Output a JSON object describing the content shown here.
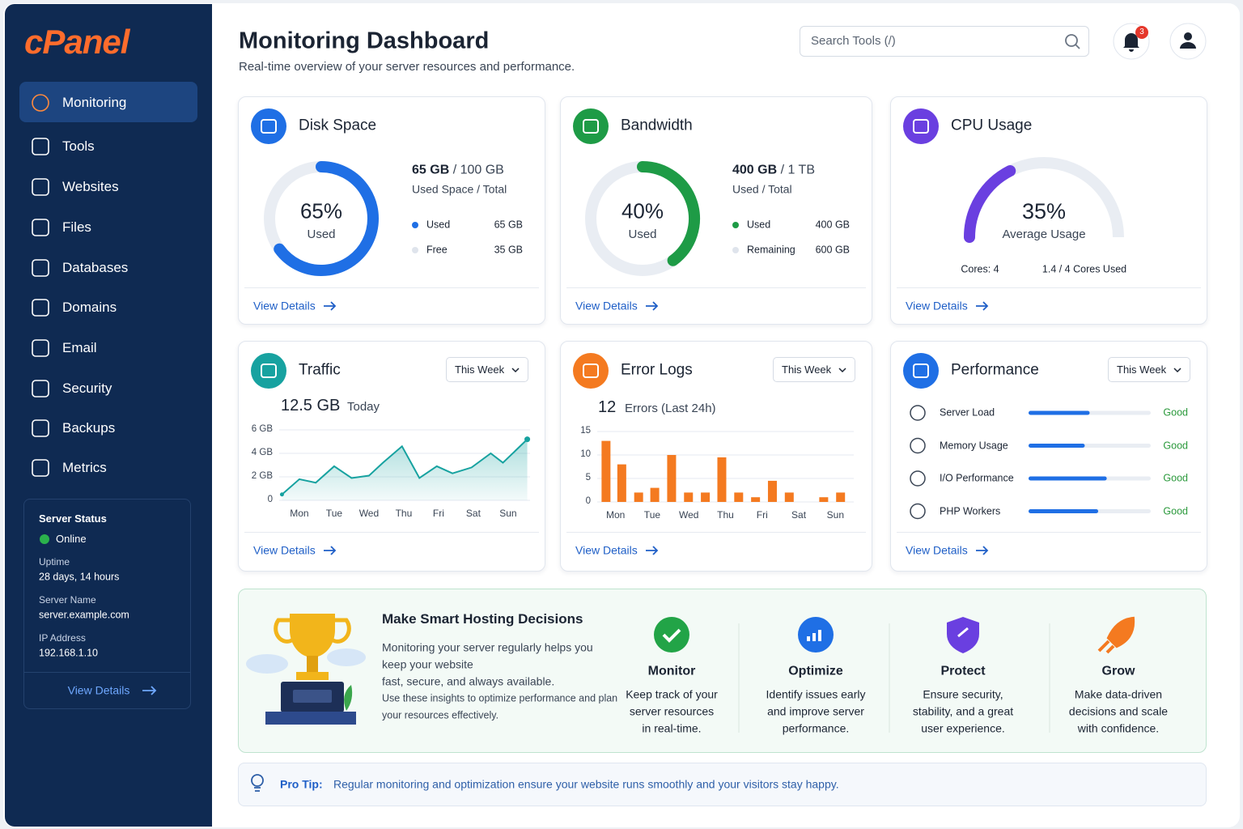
{
  "sidebar": {
    "logo": "cPanel",
    "nav": [
      "Monitoring",
      "Tools",
      "Websites",
      "Files",
      "Databases",
      "Domains",
      "Email",
      "Security",
      "Backups",
      "Metrics"
    ],
    "server_status": {
      "title": "Server Status",
      "status": "Online",
      "fields": [
        {
          "label": "Uptime",
          "value": "28 days, 14 hours"
        },
        {
          "label": "Server Name",
          "value": "server.example.com"
        },
        {
          "label": "IP Address",
          "value": "192.168.1.10"
        }
      ],
      "link": "View Details"
    }
  },
  "header": {
    "title": "Monitoring Dashboard",
    "subtitle": "Real-time overview of your server resources and performance.",
    "search_placeholder": "Search Tools (/)",
    "notifications": 3
  },
  "disk": {
    "title": "Disk Space",
    "percent": {
      "value": 65,
      "label": "65%"
    },
    "percent_caption": "Used",
    "color": "#1f6fe5",
    "used": "65 GB",
    "total": "/ 100 GB",
    "summary_caption": "Used Space / Total",
    "legend": [
      {
        "name": "Used",
        "value": "65 GB",
        "color": "#1f6fe5"
      },
      {
        "name": "Free",
        "value": "35 GB",
        "color": "#dfe4ec"
      }
    ],
    "link": "View Details"
  },
  "bandwidth": {
    "title": "Bandwidth",
    "percent": {
      "value": 40,
      "label": "40%"
    },
    "percent_caption": "Used",
    "color": "#1e9b46",
    "used": "400 GB",
    "total": "/ 1 TB",
    "summary_caption": "Used / Total",
    "legend": [
      {
        "name": "Used",
        "value": "400 GB",
        "color": "#1e9b46"
      },
      {
        "name": "Remaining",
        "value": "600 GB",
        "color": "#dfe4ec"
      }
    ],
    "link": "View Details"
  },
  "cpu": {
    "title": "CPU Usage",
    "percent": {
      "value": 35,
      "label": "35%"
    },
    "percent_caption": "Average Usage",
    "color": "#6a3fe0",
    "cores": "Cores: 4",
    "cores_used": "1.4 / 4 Cores Used",
    "link": "View Details"
  },
  "traffic": {
    "title": "Traffic",
    "period": "This Week",
    "total": "12.5 GB",
    "total_caption": "Today",
    "chart": {
      "type": "line",
      "color": "#17a2a0",
      "x": [
        -0.5,
        0,
        0.47,
        1,
        1.5,
        2,
        2.4,
        2.95,
        3.45,
        3.95,
        4.4,
        4.95,
        5.5,
        5.85,
        6.55
      ],
      "values": [
        0.5,
        1.8,
        1.5,
        2.9,
        1.9,
        2.1,
        3.2,
        4.6,
        1.9,
        2.9,
        2.3,
        2.8,
        4.0,
        3.2,
        5.2
      ],
      "xlim": [
        -0.58,
        6.63
      ],
      "ylim": [
        0,
        6
      ],
      "yticks": [
        0,
        {
          "value": 2,
          "label": "2 GB"
        },
        {
          "value": 4,
          "label": "4 GB"
        },
        {
          "value": 6,
          "label": "6 GB"
        }
      ],
      "xticks": [
        {
          "value": 0,
          "label": "Mon"
        },
        {
          "value": 1,
          "label": "Tue"
        },
        {
          "value": 2,
          "label": "Wed"
        },
        {
          "value": 3,
          "label": "Thu"
        },
        {
          "value": 4,
          "label": "Fri"
        },
        {
          "value": 5,
          "label": "Sat"
        },
        {
          "value": 6,
          "label": "Sun"
        }
      ],
      "grid": true
    },
    "link": "View Details"
  },
  "errors": {
    "title": "Error Logs",
    "period": "This Week",
    "count": 12,
    "count_caption": "Errors (Last 24h)",
    "chart": {
      "type": "bar",
      "color": "#f47a20",
      "x": [
        -0.26,
        0.17,
        0.63,
        1.07,
        1.53,
        1.99,
        2.45,
        2.9,
        3.36,
        3.82,
        4.28,
        4.74,
        5.68,
        6.14
      ],
      "values": [
        13,
        8,
        2,
        3,
        10,
        2,
        2,
        9.5,
        2,
        1,
        4.5,
        2,
        1,
        2
      ],
      "xlim": [
        -0.5,
        6.5
      ],
      "ylim": [
        0,
        15
      ],
      "yticks": [
        0,
        5,
        10,
        15
      ],
      "xticks": [
        {
          "value": 0,
          "label": "Mon"
        },
        {
          "value": 1,
          "label": "Tue"
        },
        {
          "value": 2,
          "label": "Wed"
        },
        {
          "value": 3,
          "label": "Thu"
        },
        {
          "value": 4,
          "label": "Fri"
        },
        {
          "value": 5,
          "label": "Sat"
        },
        {
          "value": 6,
          "label": "Sun"
        }
      ],
      "grid": true
    },
    "link": "View Details"
  },
  "performance": {
    "title": "Performance",
    "period": "This Week",
    "color": "#1f6fe5",
    "xlim": [
      0,
      100
    ],
    "metrics": [
      {
        "name": "Server Load",
        "value": 50,
        "status": "Good"
      },
      {
        "name": "Memory Usage",
        "value": 46,
        "status": "Good"
      },
      {
        "name": "I/O Performance",
        "value": 64,
        "status": "Good"
      },
      {
        "name": "PHP Workers",
        "value": 57,
        "status": "Good"
      }
    ],
    "link": "View Details"
  },
  "banner": {
    "title": "Make Smart Hosting Decisions",
    "text_lines": [
      "Monitoring your  server regularly helps you",
      "keep your website",
      "fast, secure, and always available."
    ],
    "note_lines": [
      "Use these insights to optimize performance and plan",
      "your resources effectively."
    ],
    "features": [
      {
        "title": "Monitor",
        "lines": [
          "Keep track of your",
          "server resources",
          "in real-time."
        ]
      },
      {
        "title": "Optimize",
        "lines": [
          "Identify issues early",
          "and improve server",
          "performance."
        ]
      },
      {
        "title": "Protect",
        "lines": [
          "Ensure security,",
          "stability, and a great",
          "user experience."
        ]
      },
      {
        "title": "Grow",
        "lines": [
          "Make data-driven",
          "decisions and scale",
          "with confidence."
        ]
      }
    ]
  },
  "tip": {
    "label": "Pro Tip:",
    "text": "Regular monitoring and optimization ensure your website runs smoothly and your visitors stay happy."
  }
}
